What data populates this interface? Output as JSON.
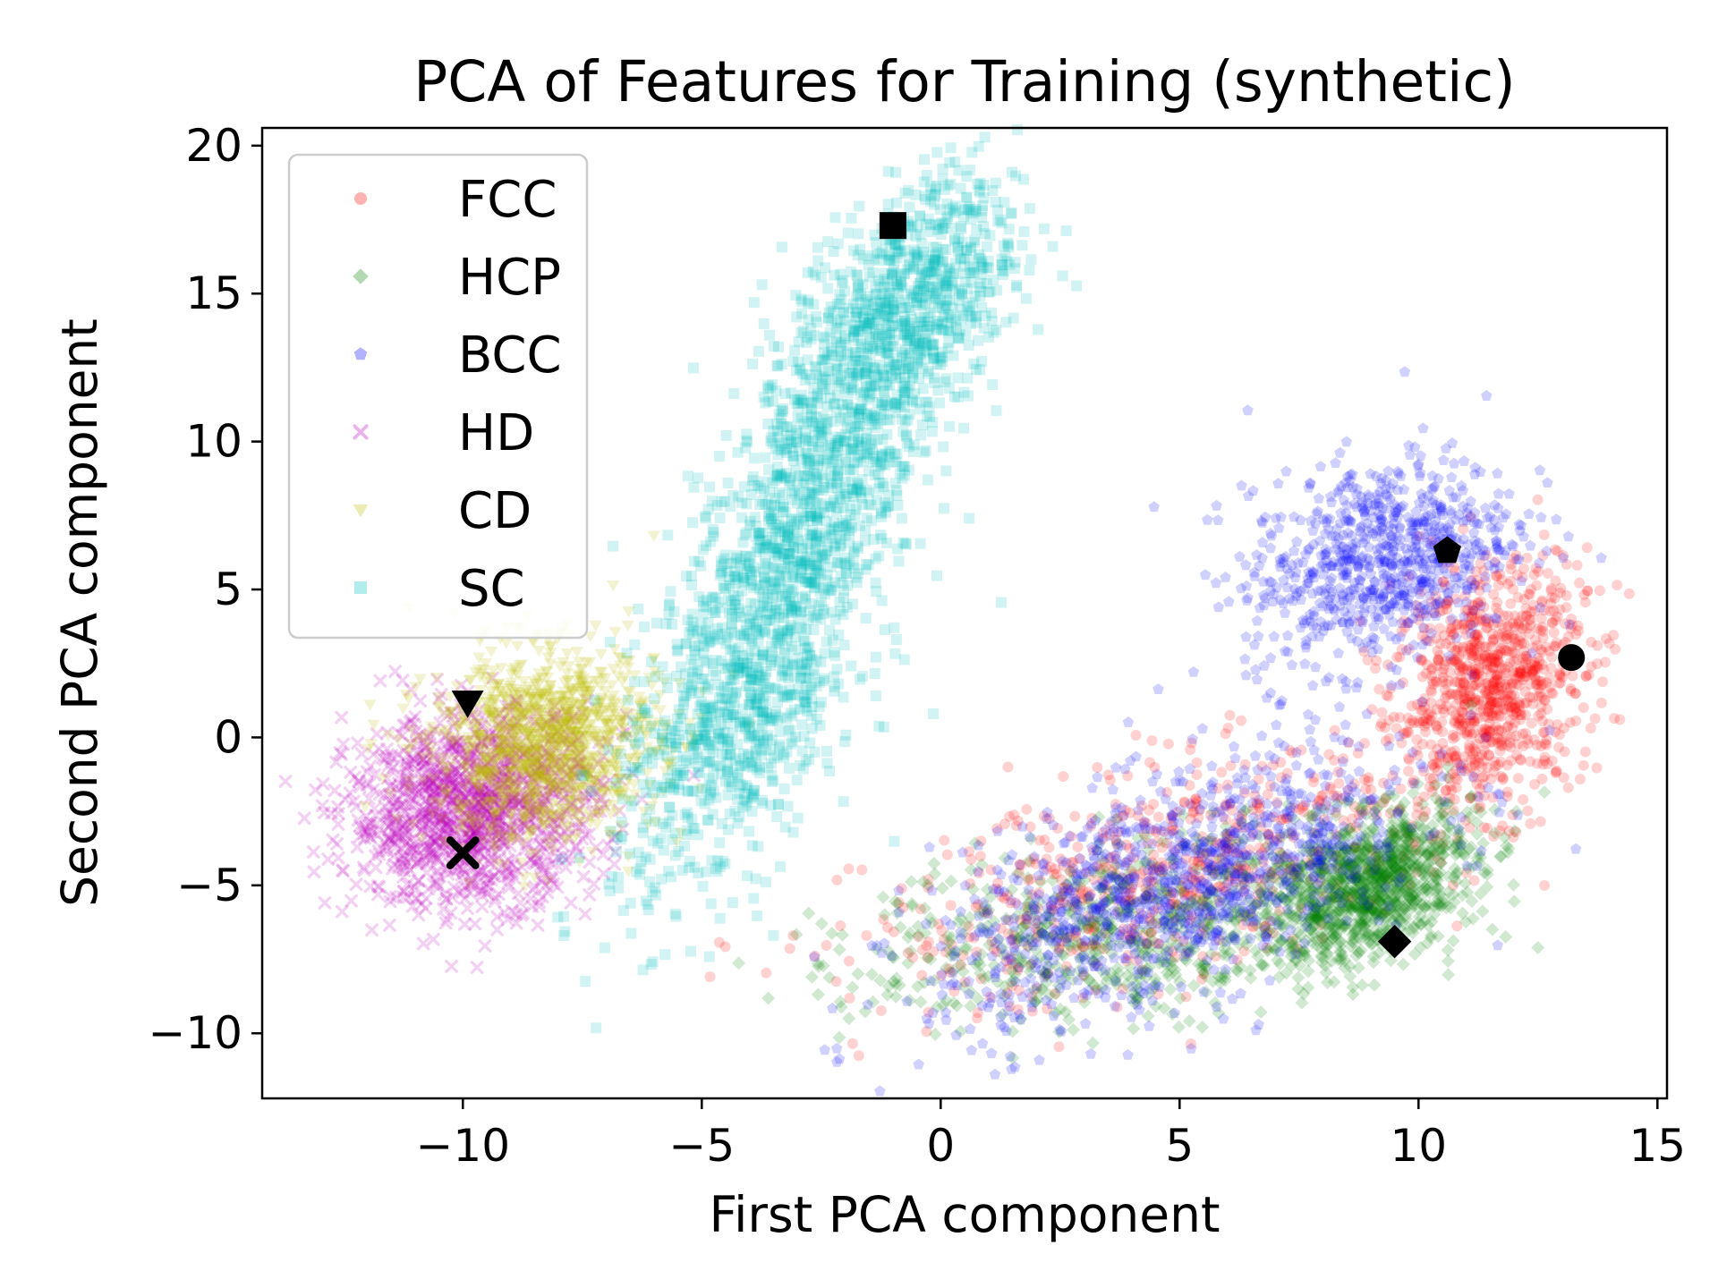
{
  "chart_data": {
    "type": "scatter",
    "title": "PCA of Features for Training (synthetic)",
    "xlabel": "First PCA component",
    "ylabel": "Second PCA component",
    "xlim": [
      -14.2,
      15.2
    ],
    "ylim": [
      -12.2,
      20.6
    ],
    "xticks": [
      -10,
      -5,
      0,
      5,
      10,
      15
    ],
    "yticks": [
      -10,
      -5,
      0,
      5,
      10,
      15,
      20
    ],
    "xtick_labels": [
      "−10",
      "−5",
      "0",
      "5",
      "10",
      "15"
    ],
    "ytick_labels": [
      "−10",
      "−5",
      "0",
      "5",
      "10",
      "15",
      "20"
    ],
    "grid": false,
    "legend_position": "top-left",
    "series": [
      {
        "name": "FCC",
        "color": "#ff0000",
        "marker": "circle",
        "clusters": [
          {
            "cx": 11.5,
            "cy": 1.8,
            "sx": 1.0,
            "sy": 2.0,
            "rho": 0.2,
            "n": 900
          },
          {
            "cx": 5.0,
            "cy": -4.5,
            "sx": 3.2,
            "sy": 2.2,
            "rho": 0.6,
            "n": 700
          }
        ],
        "highlight": {
          "x": 13.2,
          "y": 2.7
        }
      },
      {
        "name": "HCP",
        "color": "#008000",
        "marker": "diamond",
        "clusters": [
          {
            "cx": 9.0,
            "cy": -5.0,
            "sx": 1.1,
            "sy": 1.3,
            "rho": 0.4,
            "n": 1000
          },
          {
            "cx": 4.0,
            "cy": -6.5,
            "sx": 2.8,
            "sy": 1.6,
            "rho": 0.3,
            "n": 700
          }
        ],
        "highlight": {
          "x": 9.5,
          "y": -6.9
        }
      },
      {
        "name": "BCC",
        "color": "#0000ff",
        "marker": "pentagon",
        "clusters": [
          {
            "cx": 9.2,
            "cy": 6.0,
            "sx": 1.4,
            "sy": 1.8,
            "rho": 0.3,
            "n": 800
          },
          {
            "cx": 5.0,
            "cy": -5.0,
            "sx": 2.6,
            "sy": 2.3,
            "rho": 0.6,
            "n": 1100
          }
        ],
        "highlight": {
          "x": 10.6,
          "y": 6.3
        }
      },
      {
        "name": "HD",
        "color": "#bf00bf",
        "marker": "x",
        "clusters": [
          {
            "cx": -9.8,
            "cy": -2.4,
            "sx": 1.3,
            "sy": 1.6,
            "rho": 0.1,
            "n": 1300
          }
        ],
        "highlight": {
          "x": -10.0,
          "y": -3.9
        }
      },
      {
        "name": "CD",
        "color": "#bfbf00",
        "marker": "triangle-down",
        "clusters": [
          {
            "cx": -8.3,
            "cy": -0.3,
            "sx": 1.2,
            "sy": 1.6,
            "rho": 0.1,
            "n": 1300
          }
        ],
        "highlight": {
          "x": -9.9,
          "y": 1.2
        }
      },
      {
        "name": "SC",
        "color": "#00bfbf",
        "marker": "square",
        "clusters": [
          {
            "cx": -0.8,
            "cy": 14.5,
            "sx": 1.2,
            "sy": 2.2,
            "rho": 0.5,
            "n": 900
          },
          {
            "cx": -2.8,
            "cy": 7.5,
            "sx": 1.2,
            "sy": 3.0,
            "rho": 0.6,
            "n": 900
          },
          {
            "cx": -4.3,
            "cy": 0.5,
            "sx": 1.3,
            "sy": 3.0,
            "rho": 0.5,
            "n": 800
          }
        ],
        "highlight": {
          "x": -1.0,
          "y": 17.3
        }
      }
    ]
  }
}
